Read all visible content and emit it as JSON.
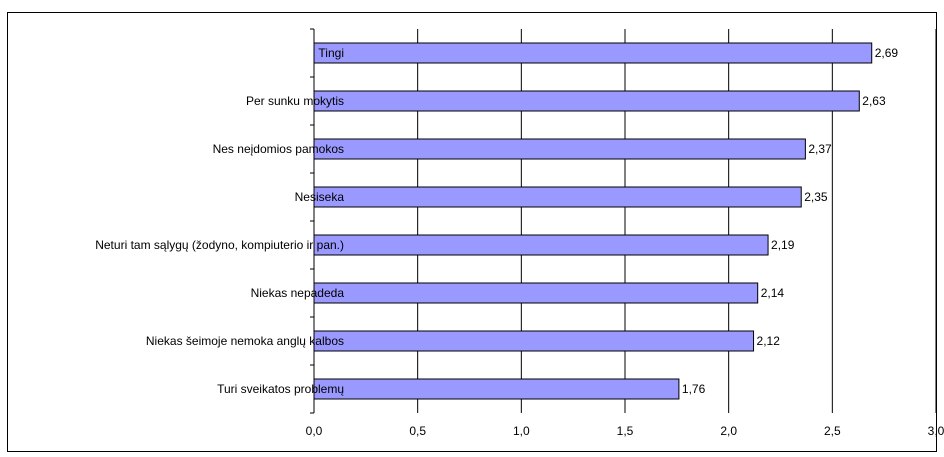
{
  "chart_data": {
    "type": "bar",
    "orientation": "horizontal",
    "title": "",
    "xlabel": "",
    "ylabel": "",
    "categories": [
      "Tingi",
      "Per sunku mokytis",
      "Nes neįdomios pamokos",
      "Nesiseka",
      "Neturi tam sąlygų (žodyno, kompiuterio ir pan.)",
      "Niekas nepadeda",
      "Niekas šeimoje nemoka anglų kalbos",
      "Turi sveikatos problemų"
    ],
    "values": [
      2.69,
      2.63,
      2.37,
      2.35,
      2.19,
      2.14,
      2.12,
      1.76
    ],
    "value_labels": [
      "2,69",
      "2,63",
      "2,37",
      "2,35",
      "2,19",
      "2,14",
      "2,12",
      "1,76"
    ],
    "xlim": [
      0,
      3
    ],
    "x_ticks": [
      0,
      0.5,
      1,
      1.5,
      2,
      2.5,
      3
    ],
    "x_tick_labels": [
      "0,0",
      "0,5",
      "1,0",
      "1,5",
      "2,0",
      "2,5",
      "3,0"
    ],
    "grid": "vertical",
    "legend": "none",
    "colors": {
      "bar_fill": "#9999ff",
      "bar_stroke": "#000000",
      "grid": "#000000",
      "axis": "#000000"
    }
  }
}
